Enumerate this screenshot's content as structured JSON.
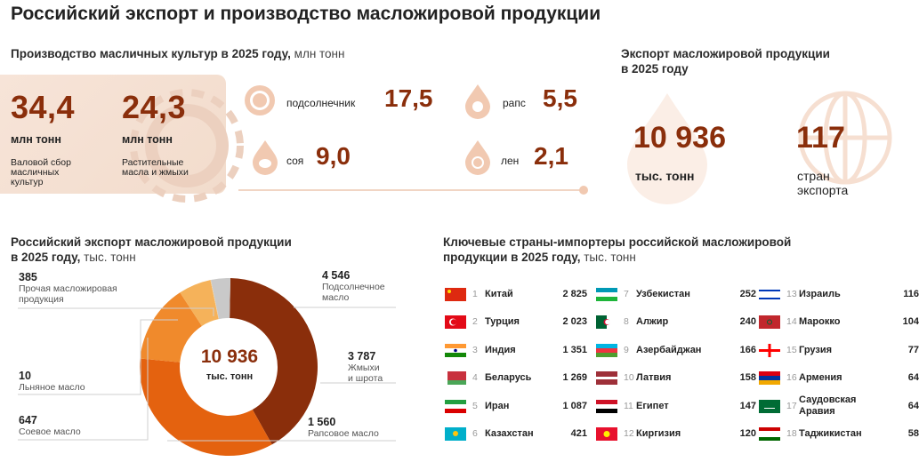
{
  "title": "Российский экспорт и производство масложировой продукции",
  "production": {
    "title": "Производство масличных культур в 2025 году,",
    "unit": "млн тонн",
    "gross": {
      "value": "34,4",
      "unit": "млн тонн",
      "label_1": "Валовой сбор",
      "label_2": "масличных",
      "label_3": "культур"
    },
    "oils": {
      "value": "24,3",
      "unit": "млн тонн",
      "label_1": "Растительные",
      "label_2": "масла и жмыхи"
    },
    "crops": [
      {
        "name": "подсолнечник",
        "value": "17,5",
        "icon": "sunflower-icon"
      },
      {
        "name": "рапс",
        "value": "5,5",
        "icon": "drop-icon"
      },
      {
        "name": "соя",
        "value": "9,0",
        "icon": "drop-icon"
      },
      {
        "name": "лен",
        "value": "2,1",
        "icon": "drop-icon"
      }
    ]
  },
  "export": {
    "title_1": "Экспорт масложировой продукции",
    "title_2": "в 2025 году",
    "volume": {
      "value": "10 936",
      "label": "тыс. тонн"
    },
    "countries": {
      "value": "117",
      "label_1": "стран",
      "label_2": "экспорта"
    }
  },
  "donut": {
    "title_1": "Российский экспорт масложировой продукции",
    "title_2": "в 2025 году,",
    "unit": "тыс. тонн",
    "center_value": "10 936",
    "center_unit": "тыс. тонн",
    "labels": {
      "other": {
        "value": "385",
        "l1": "Прочая масложировая",
        "l2": "продукция"
      },
      "sun": {
        "value": "4 546",
        "l1": "Подсолнечное",
        "l2": "масло"
      },
      "meal": {
        "value": "3 787",
        "l1": "Жмыхи",
        "l2": "и шрота"
      },
      "flax": {
        "value": "10",
        "l1": "Льняное масло"
      },
      "soy": {
        "value": "647",
        "l1": "Соевое масло"
      },
      "rape": {
        "value": "1 560",
        "l1": "Рапсовое масло"
      }
    }
  },
  "chart_data": {
    "type": "pie",
    "title": "Российский экспорт масложировой продукции в 2025 году, тыс. тонн",
    "categories": [
      "Подсолнечное масло",
      "Жмыхи и шрота",
      "Рапсовое масло",
      "Соевое масло",
      "Льняное масло",
      "Прочая масложировая продукция"
    ],
    "values": [
      4546,
      3787,
      1560,
      647,
      10,
      385
    ],
    "colors": [
      "#8a2e0b",
      "#e4620f",
      "#f08a2c",
      "#f5b25a",
      "#f3cf94",
      "#c9c9c9"
    ],
    "center_value": "10 936",
    "center_unit": "тыс. тонн"
  },
  "importers": {
    "title_1": "Ключевые страны-импортеры российской масложировой",
    "title_2": "продукции в 2025 году,",
    "unit": "тыс. тонн",
    "columns": [
      [
        {
          "idx": "1",
          "name": "Китай",
          "value": "2 825",
          "flag": "china"
        },
        {
          "idx": "2",
          "name": "Турция",
          "value": "2 023",
          "flag": "turkey"
        },
        {
          "idx": "3",
          "name": "Индия",
          "value": "1 351",
          "flag": "india"
        },
        {
          "idx": "4",
          "name": "Беларусь",
          "value": "1 269",
          "flag": "belarus"
        },
        {
          "idx": "5",
          "name": "Иран",
          "value": "1 087",
          "flag": "iran"
        },
        {
          "idx": "6",
          "name": "Казахстан",
          "value": "421",
          "flag": "kazakhstan"
        }
      ],
      [
        {
          "idx": "7",
          "name": "Узбекистан",
          "value": "252",
          "flag": "uzbekistan"
        },
        {
          "idx": "8",
          "name": "Алжир",
          "value": "240",
          "flag": "algeria"
        },
        {
          "idx": "9",
          "name": "Азербайджан",
          "value": "166",
          "flag": "azerbaijan"
        },
        {
          "idx": "10",
          "name": "Латвия",
          "value": "158",
          "flag": "latvia"
        },
        {
          "idx": "11",
          "name": "Египет",
          "value": "147",
          "flag": "egypt"
        },
        {
          "idx": "12",
          "name": "Киргизия",
          "value": "120",
          "flag": "kyrgyzstan"
        }
      ],
      [
        {
          "idx": "13",
          "name": "Израиль",
          "value": "116",
          "flag": "israel"
        },
        {
          "idx": "14",
          "name": "Марокко",
          "value": "104",
          "flag": "morocco"
        },
        {
          "idx": "15",
          "name": "Грузия",
          "value": "77",
          "flag": "georgia"
        },
        {
          "idx": "16",
          "name": "Армения",
          "value": "64",
          "flag": "armenia"
        },
        {
          "idx": "17",
          "name": "Саудовская Аравия",
          "value": "64",
          "flag": "saudi"
        },
        {
          "idx": "18",
          "name": "Таджикистан",
          "value": "58",
          "flag": "tajikistan"
        }
      ]
    ]
  }
}
